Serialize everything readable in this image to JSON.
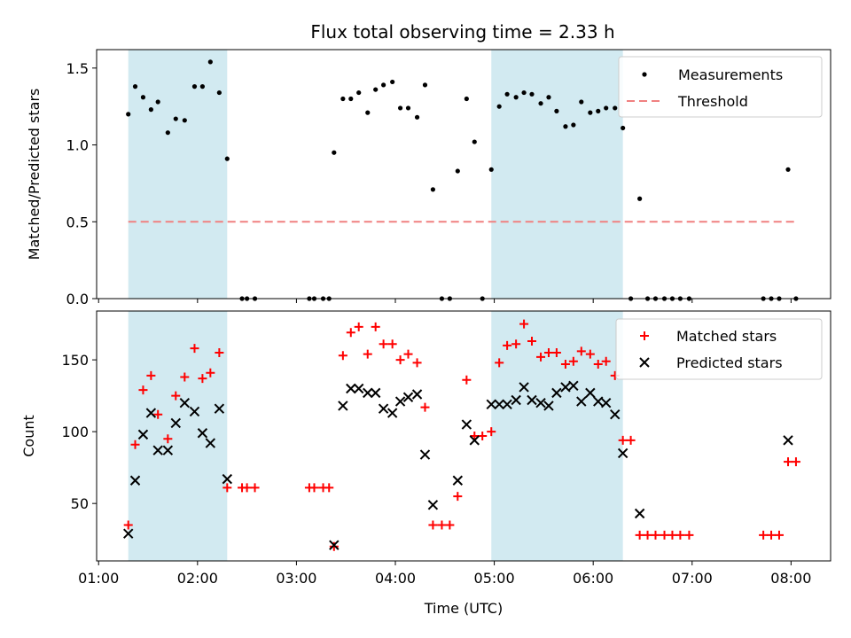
{
  "chart_data": {
    "type": "scatter",
    "title": "Flux total observing time = 2.33 h",
    "xlabel": "Time (UTC)",
    "x_ticks": [
      "01:00",
      "02:00",
      "03:00",
      "04:00",
      "05:00",
      "06:00",
      "07:00",
      "08:00"
    ],
    "x_range_hours": [
      0.98,
      8.4
    ],
    "shaded_intervals_hours": [
      [
        1.3,
        2.3
      ],
      [
        4.97,
        6.3
      ]
    ],
    "colors": {
      "shade": "#add8e6",
      "matched": "#ff0000",
      "predicted": "#000000",
      "measurements": "#000000",
      "threshold": "#f08080"
    },
    "top_panel": {
      "ylabel": "Matched/Predicted stars",
      "ylim": [
        0,
        1.62
      ],
      "y_ticks": [
        "0.0",
        "0.5",
        "1.0",
        "1.5"
      ],
      "legend_position": "top-right",
      "threshold": {
        "name": "Threshold",
        "value": 0.5,
        "x_start": 1.3,
        "x_end": 8.07
      },
      "series": [
        {
          "name": "Measurements",
          "points": [
            [
              1.3,
              1.2
            ],
            [
              1.37,
              1.38
            ],
            [
              1.45,
              1.31
            ],
            [
              1.53,
              1.23
            ],
            [
              1.6,
              1.28
            ],
            [
              1.7,
              1.08
            ],
            [
              1.78,
              1.17
            ],
            [
              1.87,
              1.16
            ],
            [
              1.97,
              1.38
            ],
            [
              2.05,
              1.38
            ],
            [
              2.13,
              1.54
            ],
            [
              2.22,
              1.34
            ],
            [
              2.3,
              0.91
            ],
            [
              2.45,
              0.0
            ],
            [
              2.5,
              0.0
            ],
            [
              2.58,
              0.0
            ],
            [
              3.13,
              0.0
            ],
            [
              3.18,
              0.0
            ],
            [
              3.27,
              0.0
            ],
            [
              3.33,
              0.0
            ],
            [
              3.38,
              0.95
            ],
            [
              3.47,
              1.3
            ],
            [
              3.55,
              1.3
            ],
            [
              3.63,
              1.34
            ],
            [
              3.72,
              1.21
            ],
            [
              3.8,
              1.36
            ],
            [
              3.88,
              1.39
            ],
            [
              3.97,
              1.41
            ],
            [
              4.05,
              1.24
            ],
            [
              4.13,
              1.24
            ],
            [
              4.22,
              1.18
            ],
            [
              4.3,
              1.39
            ],
            [
              4.38,
              0.71
            ],
            [
              4.47,
              0.0
            ],
            [
              4.55,
              0.0
            ],
            [
              4.63,
              0.83
            ],
            [
              4.72,
              1.3
            ],
            [
              4.8,
              1.02
            ],
            [
              4.88,
              0.0
            ],
            [
              4.97,
              0.84
            ],
            [
              5.05,
              1.25
            ],
            [
              5.13,
              1.33
            ],
            [
              5.22,
              1.31
            ],
            [
              5.3,
              1.34
            ],
            [
              5.38,
              1.33
            ],
            [
              5.47,
              1.27
            ],
            [
              5.55,
              1.31
            ],
            [
              5.63,
              1.22
            ],
            [
              5.72,
              1.12
            ],
            [
              5.8,
              1.13
            ],
            [
              5.88,
              1.28
            ],
            [
              5.97,
              1.21
            ],
            [
              6.05,
              1.22
            ],
            [
              6.13,
              1.24
            ],
            [
              6.22,
              1.24
            ],
            [
              6.3,
              1.11
            ],
            [
              6.38,
              0.0
            ],
            [
              6.47,
              0.65
            ],
            [
              6.55,
              0.0
            ],
            [
              6.63,
              0.0
            ],
            [
              6.72,
              0.0
            ],
            [
              6.8,
              0.0
            ],
            [
              6.88,
              0.0
            ],
            [
              6.97,
              0.0
            ],
            [
              7.72,
              0.0
            ],
            [
              7.8,
              0.0
            ],
            [
              7.88,
              0.0
            ],
            [
              7.97,
              0.84
            ],
            [
              8.05,
              0.0
            ]
          ]
        }
      ]
    },
    "bottom_panel": {
      "ylabel": "Count",
      "ylim": [
        10,
        184
      ],
      "y_ticks": [
        "50",
        "100",
        "150"
      ],
      "legend_position": "top-right",
      "series": [
        {
          "name": "Matched stars",
          "points": [
            [
              1.3,
              35
            ],
            [
              1.37,
              91
            ],
            [
              1.45,
              129
            ],
            [
              1.53,
              139
            ],
            [
              1.6,
              112
            ],
            [
              1.7,
              95
            ],
            [
              1.78,
              125
            ],
            [
              1.87,
              138
            ],
            [
              1.97,
              158
            ],
            [
              2.05,
              137
            ],
            [
              2.13,
              141
            ],
            [
              2.22,
              155
            ],
            [
              2.3,
              61
            ],
            [
              2.45,
              61
            ],
            [
              2.5,
              61
            ],
            [
              2.58,
              61
            ],
            [
              3.13,
              61
            ],
            [
              3.18,
              61
            ],
            [
              3.27,
              61
            ],
            [
              3.33,
              61
            ],
            [
              3.38,
              20
            ],
            [
              3.47,
              153
            ],
            [
              3.55,
              169
            ],
            [
              3.63,
              173
            ],
            [
              3.72,
              154
            ],
            [
              3.8,
              173
            ],
            [
              3.88,
              161
            ],
            [
              3.97,
              161
            ],
            [
              4.05,
              150
            ],
            [
              4.13,
              154
            ],
            [
              4.22,
              148
            ],
            [
              4.3,
              117
            ],
            [
              4.38,
              35
            ],
            [
              4.47,
              35
            ],
            [
              4.55,
              35
            ],
            [
              4.63,
              55
            ],
            [
              4.72,
              136
            ],
            [
              4.8,
              97
            ],
            [
              4.88,
              97
            ],
            [
              4.97,
              100
            ],
            [
              5.05,
              148
            ],
            [
              5.13,
              160
            ],
            [
              5.22,
              161
            ],
            [
              5.3,
              175
            ],
            [
              5.38,
              163
            ],
            [
              5.47,
              152
            ],
            [
              5.55,
              155
            ],
            [
              5.63,
              155
            ],
            [
              5.72,
              147
            ],
            [
              5.8,
              149
            ],
            [
              5.88,
              156
            ],
            [
              5.97,
              154
            ],
            [
              6.05,
              147
            ],
            [
              6.13,
              149
            ],
            [
              6.22,
              139
            ],
            [
              6.3,
              94
            ],
            [
              6.38,
              94
            ],
            [
              6.47,
              28
            ],
            [
              6.55,
              28
            ],
            [
              6.63,
              28
            ],
            [
              6.72,
              28
            ],
            [
              6.8,
              28
            ],
            [
              6.88,
              28
            ],
            [
              6.97,
              28
            ],
            [
              7.72,
              28
            ],
            [
              7.8,
              28
            ],
            [
              7.88,
              28
            ],
            [
              7.97,
              79
            ],
            [
              8.05,
              79
            ]
          ]
        },
        {
          "name": "Predicted stars",
          "points": [
            [
              1.3,
              29
            ],
            [
              1.37,
              66
            ],
            [
              1.45,
              98
            ],
            [
              1.53,
              113
            ],
            [
              1.6,
              87
            ],
            [
              1.7,
              87
            ],
            [
              1.78,
              106
            ],
            [
              1.87,
              120
            ],
            [
              1.97,
              114
            ],
            [
              2.05,
              99
            ],
            [
              2.13,
              92
            ],
            [
              2.22,
              116
            ],
            [
              2.3,
              67
            ],
            [
              3.38,
              21
            ],
            [
              3.47,
              118
            ],
            [
              3.55,
              130
            ],
            [
              3.63,
              130
            ],
            [
              3.72,
              127
            ],
            [
              3.8,
              127
            ],
            [
              3.88,
              116
            ],
            [
              3.97,
              113
            ],
            [
              4.05,
              121
            ],
            [
              4.13,
              124
            ],
            [
              4.22,
              126
            ],
            [
              4.3,
              84
            ],
            [
              4.38,
              49
            ],
            [
              4.63,
              66
            ],
            [
              4.72,
              105
            ],
            [
              4.8,
              94
            ],
            [
              4.97,
              119
            ],
            [
              5.05,
              119
            ],
            [
              5.13,
              119
            ],
            [
              5.22,
              122
            ],
            [
              5.3,
              131
            ],
            [
              5.38,
              122
            ],
            [
              5.47,
              120
            ],
            [
              5.55,
              118
            ],
            [
              5.63,
              127
            ],
            [
              5.72,
              131
            ],
            [
              5.8,
              132
            ],
            [
              5.88,
              121
            ],
            [
              5.97,
              127
            ],
            [
              6.05,
              121
            ],
            [
              6.13,
              120
            ],
            [
              6.22,
              112
            ],
            [
              6.3,
              85
            ],
            [
              6.47,
              43
            ],
            [
              7.97,
              94
            ]
          ]
        }
      ]
    }
  }
}
